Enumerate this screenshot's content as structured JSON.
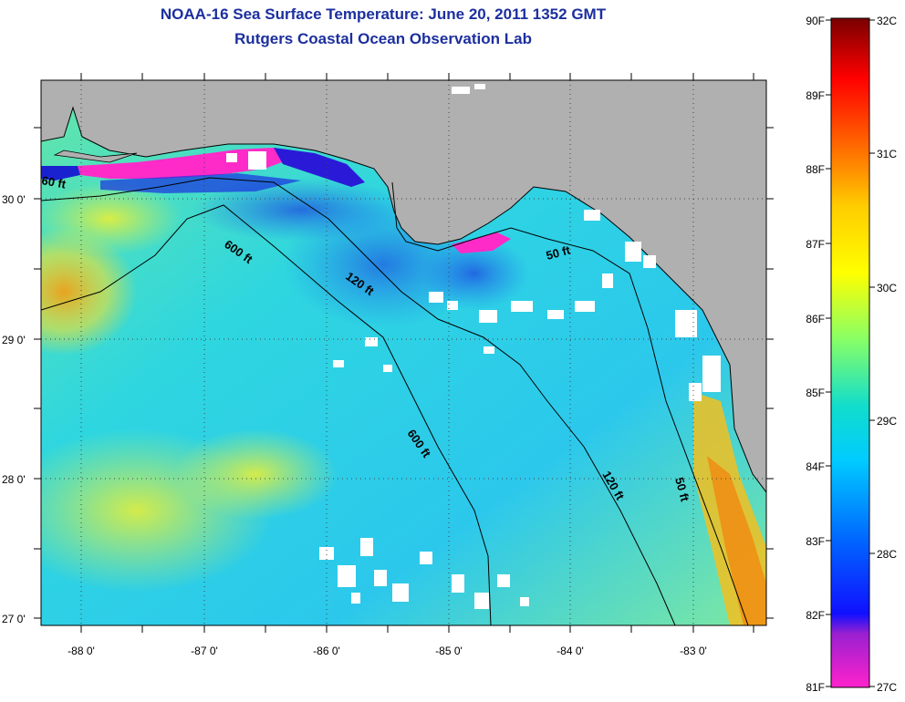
{
  "header": {
    "title": "NOAA-16 Sea Surface Temperature:  June 20, 2011 1352 GMT",
    "subtitle": "Rutgers Coastal Ocean Observation Lab"
  },
  "map": {
    "lat_labels": [
      "30 0'",
      "29 0'",
      "28 0'",
      "27 0'"
    ],
    "lon_labels": [
      "-88 0'",
      "-87 0'",
      "-86 0'",
      "-85 0'",
      "-84 0'",
      "-83 0'"
    ],
    "contour_labels": [
      "60 ft",
      "600 ft",
      "120 ft",
      "50 ft",
      "600 ft",
      "120 ft",
      "50 ft"
    ],
    "land_color": "#b0b0b0",
    "cloud_color": "#ffffff"
  },
  "colorbar": {
    "fahrenheit": [
      "90F",
      "89F",
      "88F",
      "87F",
      "86F",
      "85F",
      "84F",
      "83F",
      "82F",
      "81F"
    ],
    "celsius": [
      "32C",
      "31C",
      "30C",
      "29C",
      "28C",
      "27C"
    ],
    "stops": [
      "#ff22cc",
      "#7a20c8",
      "#0000ff",
      "#0066ff",
      "#00ddff",
      "#22ddaa",
      "#aaff55",
      "#ffff00",
      "#ffaa00",
      "#ff4400",
      "#ff0000",
      "#7a0000"
    ]
  }
}
